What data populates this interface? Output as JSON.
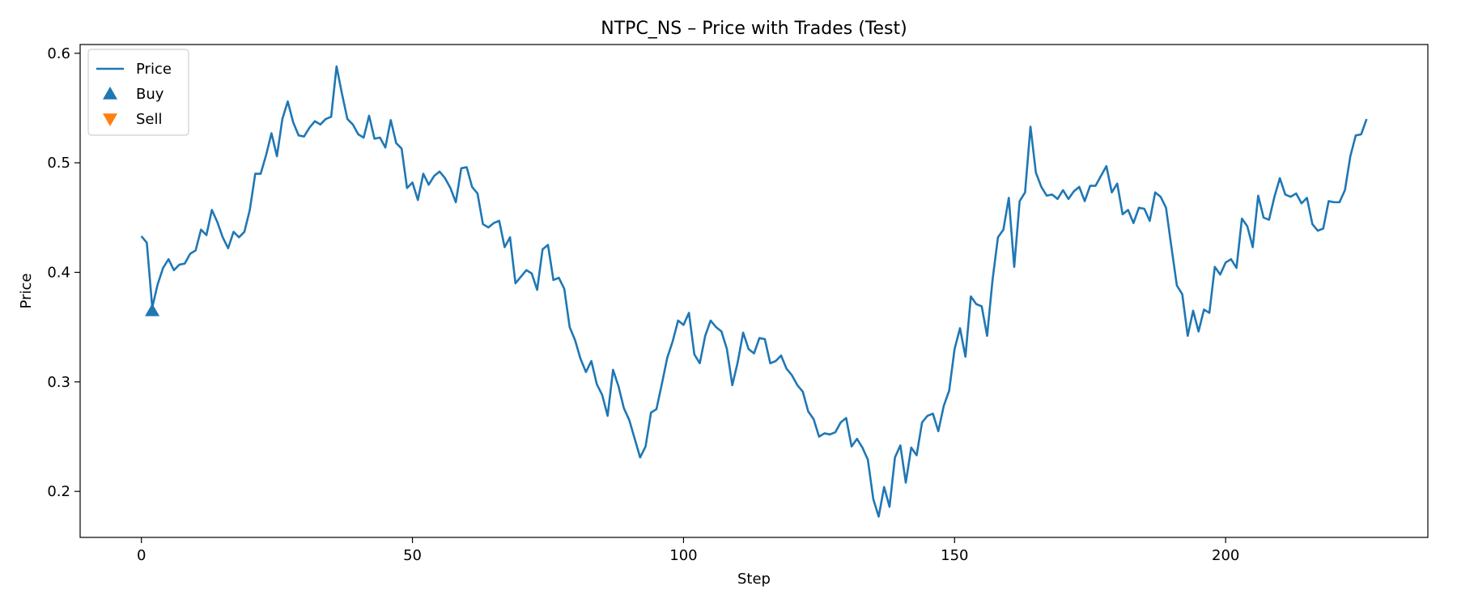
{
  "chart_data": {
    "type": "line",
    "title": "NTPC_NS – Price with Trades (Test)",
    "xlabel": "Step",
    "ylabel": "Price",
    "xlim": [
      -11.3,
      237.3
    ],
    "ylim": [
      0.158,
      0.608
    ],
    "x_ticks": [
      0,
      50,
      100,
      150,
      200
    ],
    "x_tick_labels": [
      "0",
      "50",
      "100",
      "150",
      "200"
    ],
    "y_ticks": [
      0.2,
      0.3,
      0.4,
      0.5,
      0.6
    ],
    "y_tick_labels": [
      "0.2",
      "0.3",
      "0.4",
      "0.5",
      "0.6"
    ],
    "legend_position": "top-left",
    "colors": {
      "price": "#1f77b4",
      "buy": "#1f77b4",
      "sell": "#ff7f0e"
    },
    "legend": [
      {
        "key": "price",
        "label": "Price",
        "marker": "line"
      },
      {
        "key": "buy",
        "label": "Buy",
        "marker": "triangle-up"
      },
      {
        "key": "sell",
        "label": "Sell",
        "marker": "triangle-down"
      }
    ],
    "series": [
      {
        "name": "Price",
        "key": "price",
        "values": [
          0.433,
          0.427,
          0.368,
          0.389,
          0.404,
          0.412,
          0.402,
          0.407,
          0.408,
          0.417,
          0.42,
          0.439,
          0.434,
          0.457,
          0.446,
          0.432,
          0.422,
          0.437,
          0.432,
          0.437,
          0.457,
          0.49,
          0.49,
          0.507,
          0.527,
          0.506,
          0.54,
          0.556,
          0.537,
          0.525,
          0.524,
          0.532,
          0.538,
          0.535,
          0.54,
          0.542,
          0.588,
          0.563,
          0.54,
          0.535,
          0.526,
          0.523,
          0.543,
          0.522,
          0.523,
          0.514,
          0.539,
          0.518,
          0.513,
          0.477,
          0.482,
          0.466,
          0.49,
          0.48,
          0.488,
          0.492,
          0.486,
          0.477,
          0.464,
          0.495,
          0.496,
          0.478,
          0.472,
          0.444,
          0.441,
          0.445,
          0.447,
          0.423,
          0.432,
          0.39,
          0.396,
          0.402,
          0.399,
          0.384,
          0.421,
          0.425,
          0.393,
          0.395,
          0.385,
          0.35,
          0.338,
          0.321,
          0.309,
          0.319,
          0.298,
          0.288,
          0.269,
          0.311,
          0.296,
          0.276,
          0.265,
          0.248,
          0.231,
          0.241,
          0.272,
          0.275,
          0.298,
          0.322,
          0.337,
          0.356,
          0.352,
          0.363,
          0.325,
          0.317,
          0.342,
          0.356,
          0.35,
          0.346,
          0.33,
          0.297,
          0.318,
          0.345,
          0.33,
          0.326,
          0.34,
          0.339,
          0.317,
          0.319,
          0.324,
          0.312,
          0.306,
          0.297,
          0.291,
          0.273,
          0.266,
          0.25,
          0.253,
          0.252,
          0.254,
          0.263,
          0.267,
          0.241,
          0.248,
          0.24,
          0.229,
          0.193,
          0.177,
          0.204,
          0.186,
          0.231,
          0.242,
          0.208,
          0.24,
          0.233,
          0.263,
          0.269,
          0.271,
          0.255,
          0.278,
          0.292,
          0.33,
          0.349,
          0.323,
          0.378,
          0.371,
          0.369,
          0.342,
          0.393,
          0.432,
          0.439,
          0.468,
          0.405,
          0.465,
          0.473,
          0.533,
          0.491,
          0.478,
          0.47,
          0.471,
          0.467,
          0.475,
          0.467,
          0.474,
          0.478,
          0.465,
          0.479,
          0.479,
          0.488,
          0.497,
          0.473,
          0.481,
          0.453,
          0.457,
          0.445,
          0.459,
          0.458,
          0.447,
          0.473,
          0.469,
          0.459,
          0.423,
          0.388,
          0.38,
          0.342,
          0.365,
          0.346,
          0.366,
          0.363,
          0.405,
          0.398,
          0.409,
          0.412,
          0.404,
          0.449,
          0.442,
          0.423,
          0.47,
          0.45,
          0.448,
          0.469,
          0.486,
          0.471,
          0.469,
          0.472,
          0.463,
          0.468,
          0.444,
          0.438,
          0.44,
          0.465,
          0.464,
          0.464,
          0.475,
          0.506,
          0.525,
          0.526,
          0.54
        ]
      }
    ],
    "buy_points": [
      {
        "x": 2,
        "y": 0.365
      }
    ],
    "sell_points": []
  }
}
